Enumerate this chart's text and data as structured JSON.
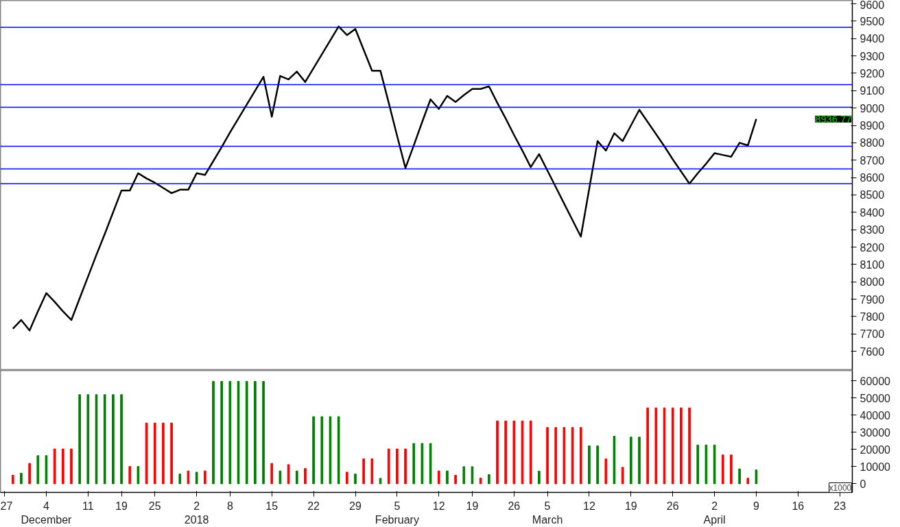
{
  "chart_data": [
    {
      "type": "line",
      "ylim": [
        7490,
        9620
      ],
      "tick_labels": "y",
      "categories": [
        null,
        null,
        null,
        null,
        null,
        null,
        null,
        null,
        null,
        null,
        null,
        null,
        null,
        null,
        null,
        null,
        null,
        null,
        null,
        null,
        null,
        null,
        null,
        null,
        null,
        null,
        null,
        null,
        null,
        null,
        null,
        null,
        null,
        null,
        null,
        null,
        null,
        null,
        null,
        null,
        null,
        null,
        null,
        null,
        null,
        null,
        null,
        null,
        null,
        null,
        null,
        null,
        null,
        null,
        null,
        null,
        null,
        null,
        null,
        null,
        null,
        null,
        null,
        null,
        null,
        null,
        null,
        null,
        null,
        null,
        null,
        null,
        null,
        null,
        null,
        null,
        null,
        null,
        null,
        null,
        null,
        null,
        null,
        null,
        null,
        null,
        null,
        null,
        null,
        null,
        null,
        null,
        null,
        null,
        null,
        null,
        null,
        null,
        null,
        null,
        null,
        null
      ],
      "yticks": [
        7600,
        7700,
        7800,
        7900,
        8000,
        8100,
        8200,
        8300,
        8400,
        8500,
        8600,
        8700,
        8800,
        8900,
        9000,
        9100,
        9200,
        9300,
        9400,
        9500,
        9600
      ],
      "series": [
        {
          "color": "#000000",
          "values": [
            null,
            7730,
            7780,
            7720,
            7830,
            7935,
            7885,
            7830,
            7780,
            7905,
            8030,
            8155,
            8275,
            8400,
            8525,
            8525,
            8625,
            8595,
            8570,
            8540,
            8510,
            8530,
            8530,
            8625,
            8615,
            8695,
            8775,
            8860,
            8940,
            9020,
            9100,
            9180,
            8950,
            9185,
            9165,
            9210,
            9150,
            9230,
            9310,
            9390,
            9470,
            9420,
            9455,
            9335,
            9215,
            9215,
            9030,
            8840,
            8655,
            8785,
            8920,
            9050,
            8995,
            9070,
            9035,
            9075,
            9110,
            9110,
            9125,
            9030,
            8940,
            8845,
            8755,
            8660,
            8735,
            8640,
            8545,
            8450,
            8355,
            8260,
            8535,
            8810,
            8755,
            8855,
            8810,
            8900,
            8990,
            8920,
            8850,
            8780,
            8705,
            8635,
            8565,
            8625,
            8680,
            8740,
            8730,
            8720,
            8800,
            8785,
            8936.77,
            null,
            null,
            null,
            null,
            null,
            null,
            null,
            null,
            null,
            null,
            null
          ]
        }
      ],
      "ref_lines": [
        {
          "axis": "y",
          "value": 9465,
          "color": "#0000ff"
        },
        {
          "axis": "y",
          "value": 9135,
          "color": "#0000ff"
        },
        {
          "axis": "y",
          "value": 9005,
          "color": "#0000ff"
        },
        {
          "axis": "y",
          "value": 8780,
          "color": "#0000ff"
        },
        {
          "axis": "y",
          "value": 8650,
          "color": "#0000ff"
        },
        {
          "axis": "y",
          "value": 8565,
          "color": "#0000ff"
        }
      ],
      "annotations": [
        "8936.77"
      ]
    },
    {
      "type": "bar",
      "ylim": [
        -5000,
        66000
      ],
      "yticks": [
        0,
        10000,
        20000,
        30000,
        40000,
        50000,
        60000
      ],
      "categories": [
        "27",
        null,
        null,
        null,
        null,
        "4\nDecember",
        null,
        null,
        null,
        null,
        "11",
        null,
        null,
        null,
        "19",
        null,
        null,
        null,
        "25",
        null,
        null,
        null,
        null,
        "2\n2018",
        null,
        null,
        null,
        "8",
        null,
        null,
        null,
        null,
        "15",
        null,
        null,
        null,
        null,
        "22",
        null,
        null,
        null,
        null,
        "29",
        null,
        null,
        null,
        null,
        "5\nFebruary",
        null,
        null,
        null,
        null,
        "12",
        null,
        null,
        null,
        "19",
        null,
        null,
        null,
        null,
        "26",
        null,
        null,
        null,
        "5\nMarch",
        null,
        null,
        null,
        null,
        "12",
        null,
        null,
        null,
        null,
        "19",
        null,
        null,
        null,
        null,
        "26",
        null,
        null,
        null,
        null,
        "2\nApril",
        null,
        null,
        null,
        null,
        "9",
        null,
        null,
        null,
        null,
        "16",
        null,
        null,
        null,
        null,
        "23",
        null
      ],
      "values": [
        null,
        5000,
        6200,
        11900,
        16400,
        16400,
        20300,
        20300,
        20300,
        51900,
        51900,
        51900,
        51900,
        51900,
        51900,
        10100,
        10100,
        35400,
        35400,
        35400,
        35400,
        5700,
        7500,
        6800,
        7500,
        59600,
        59600,
        59600,
        59600,
        59600,
        59600,
        59600,
        11900,
        7500,
        11200,
        7500,
        8900,
        39100,
        39100,
        39100,
        39100,
        6800,
        5700,
        14600,
        14600,
        3200,
        20300,
        20300,
        20300,
        23500,
        23500,
        23500,
        7500,
        7500,
        5000,
        10000,
        10000,
        3300,
        5400,
        36600,
        36600,
        36600,
        36600,
        36600,
        7400,
        32800,
        32800,
        32800,
        32800,
        32800,
        22100,
        22100,
        14500,
        27700,
        9600,
        27200,
        27200,
        44200,
        44200,
        44200,
        44200,
        44200,
        44200,
        22600,
        22600,
        22600,
        16800,
        16800,
        8700,
        3300,
        8100,
        null,
        null,
        null,
        null,
        null,
        null,
        null,
        null,
        null,
        null,
        null
      ],
      "colors": [
        null,
        "#ff0000",
        "#008000",
        "#ff0000",
        "#008000",
        "#008000",
        "#ff0000",
        "#ff0000",
        "#ff0000",
        "#008000",
        "#008000",
        "#008000",
        "#008000",
        "#008000",
        "#008000",
        "#ff0000",
        "#008000",
        "#ff0000",
        "#ff0000",
        "#ff0000",
        "#ff0000",
        "#008000",
        "#ff0000",
        "#008000",
        "#ff0000",
        "#008000",
        "#008000",
        "#008000",
        "#008000",
        "#008000",
        "#008000",
        "#008000",
        "#ff0000",
        "#008000",
        "#ff0000",
        "#008000",
        "#ff0000",
        "#008000",
        "#008000",
        "#008000",
        "#008000",
        "#ff0000",
        "#008000",
        "#ff0000",
        "#ff0000",
        "#008000",
        "#ff0000",
        "#ff0000",
        "#ff0000",
        "#008000",
        "#008000",
        "#008000",
        "#ff0000",
        "#008000",
        "#ff0000",
        "#008000",
        "#008000",
        "#ff0000",
        "#008000",
        "#ff0000",
        "#ff0000",
        "#ff0000",
        "#ff0000",
        "#ff0000",
        "#008000",
        "#ff0000",
        "#ff0000",
        "#ff0000",
        "#ff0000",
        "#ff0000",
        "#008000",
        "#008000",
        "#ff0000",
        "#008000",
        "#ff0000",
        "#008000",
        "#008000",
        "#ff0000",
        "#ff0000",
        "#ff0000",
        "#ff0000",
        "#ff0000",
        "#ff0000",
        "#008000",
        "#008000",
        "#008000",
        "#ff0000",
        "#ff0000",
        "#008000",
        "#ff0000",
        "#008000",
        null,
        null,
        null,
        null,
        null,
        null,
        null,
        null,
        null,
        null,
        null
      ],
      "annotations": [
        "x1000"
      ]
    }
  ]
}
